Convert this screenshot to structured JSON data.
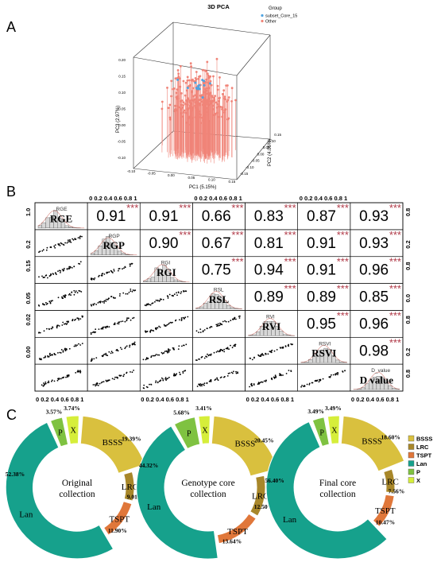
{
  "panel_labels": {
    "a": "A",
    "b": "B",
    "c": "C"
  },
  "colors": {
    "BSSS": "#d9c03e",
    "LRC": "#a8872a",
    "TSPT": "#e0773a",
    "Lan": "#16a18c",
    "P": "#7fc241",
    "X": "#d6ee3a",
    "subset": "#4fa3e0",
    "other": "#f08478",
    "stars": "#b03a48"
  },
  "chart_data": [
    {
      "type": "scatter",
      "subtype": "3d",
      "title": "3D PCA",
      "xlabel": "PC1 (5.15%)",
      "ylabel": "PC2 (4.06%)",
      "zlabel": "PC3 (2.97%)",
      "xlim": [
        -0.1,
        0.15
      ],
      "ylim": [
        -0.15,
        0.15
      ],
      "zlim": [
        -0.1,
        0.2
      ],
      "x_ticks": [
        "-0.10",
        "-0.05",
        "0.00",
        "0.05",
        "0.10",
        "0.15"
      ],
      "y_ticks": [
        "-0.15",
        "-0.10",
        "-0.05",
        "0.00",
        "0.05",
        "0.10",
        "0.15"
      ],
      "z_ticks": [
        "-0.10",
        "-0.05",
        "0.00",
        "0.05",
        "0.10",
        "0.15",
        "0.20"
      ],
      "legend_title": "Group",
      "legend_position": "top-right",
      "series": [
        {
          "name": "subset_Core_15"
        },
        {
          "name": "Other"
        }
      ]
    },
    {
      "type": "scatter",
      "subtype": "correlation-matrix",
      "variables": [
        "RGE",
        "RGP",
        "RGI",
        "RSL",
        "RVI",
        "RSVI",
        "D_value"
      ],
      "labels_bold": [
        "RGE",
        "RGP",
        "RGI",
        "RSL",
        "RVI",
        "RSVI",
        "D value"
      ],
      "correlations": [
        {
          "row": 0,
          "col": 1,
          "r": "0.91",
          "sig": "***"
        },
        {
          "row": 0,
          "col": 2,
          "r": "0.91",
          "sig": "***"
        },
        {
          "row": 0,
          "col": 3,
          "r": "0.66",
          "sig": "***"
        },
        {
          "row": 0,
          "col": 4,
          "r": "0.83",
          "sig": "***"
        },
        {
          "row": 0,
          "col": 5,
          "r": "0.87",
          "sig": "***"
        },
        {
          "row": 0,
          "col": 6,
          "r": "0.93",
          "sig": "***"
        },
        {
          "row": 1,
          "col": 2,
          "r": "0.90",
          "sig": "***"
        },
        {
          "row": 1,
          "col": 3,
          "r": "0.67",
          "sig": "***"
        },
        {
          "row": 1,
          "col": 4,
          "r": "0.81",
          "sig": "***"
        },
        {
          "row": 1,
          "col": 5,
          "r": "0.91",
          "sig": "***"
        },
        {
          "row": 1,
          "col": 6,
          "r": "0.93",
          "sig": "***"
        },
        {
          "row": 2,
          "col": 3,
          "r": "0.75",
          "sig": "***"
        },
        {
          "row": 2,
          "col": 4,
          "r": "0.94",
          "sig": "***"
        },
        {
          "row": 2,
          "col": 5,
          "r": "0.91",
          "sig": "***"
        },
        {
          "row": 2,
          "col": 6,
          "r": "0.96",
          "sig": "***"
        },
        {
          "row": 3,
          "col": 4,
          "r": "0.89",
          "sig": "***"
        },
        {
          "row": 3,
          "col": 5,
          "r": "0.89",
          "sig": "***"
        },
        {
          "row": 3,
          "col": 6,
          "r": "0.85",
          "sig": "***"
        },
        {
          "row": 4,
          "col": 5,
          "r": "0.95",
          "sig": "***"
        },
        {
          "row": 4,
          "col": 6,
          "r": "0.96",
          "sig": "***"
        },
        {
          "row": 5,
          "col": 6,
          "r": "0.98",
          "sig": "***"
        }
      ],
      "top_axis_ticks": "0 0.2 0.4 0.6 0.8 1",
      "bottom_axis_ticks": "0 0.2 0.4 0.6 0.8 1",
      "left_axis_ticks": [
        {
          "row": 0,
          "labels": [
            "1.0",
            "0.2"
          ]
        },
        {
          "row": 2,
          "labels": [
            "0.15",
            "0.05"
          ]
        },
        {
          "row": 4,
          "labels": [
            "0.02",
            "0.00"
          ]
        }
      ],
      "right_axis_ticks": [
        {
          "row": 0,
          "labels": [
            "0.8",
            "0.2"
          ]
        },
        {
          "row": 2,
          "labels": [
            "0.8",
            "0.0"
          ]
        },
        {
          "row": 4,
          "labels": [
            "0.8",
            "0.2"
          ]
        },
        {
          "row": 6,
          "labels": [
            "0.8"
          ]
        }
      ]
    },
    {
      "type": "pie",
      "subtype": "donut",
      "center_label": [
        "Original",
        "collection"
      ],
      "categories": [
        "BSSS",
        "LRC",
        "TSPT",
        "Lan",
        "P",
        "X"
      ],
      "values": [
        19.39,
        9.01,
        11.9,
        52.38,
        3.57,
        3.74
      ],
      "value_labels": [
        "19.39%",
        "9.01%",
        "11.90%",
        "52.38%",
        "3.57%",
        "3.74%"
      ]
    },
    {
      "type": "pie",
      "subtype": "donut",
      "center_label": [
        "Genotype core",
        "collection"
      ],
      "categories": [
        "BSSS",
        "LRC",
        "TSPT",
        "Lan",
        "P",
        "X"
      ],
      "values": [
        20.45,
        12.5,
        13.64,
        44.32,
        5.68,
        3.41
      ],
      "value_labels": [
        "20.45%",
        "12.50%",
        "13.64%",
        "44.32%",
        "5.68%",
        "3.41%"
      ]
    },
    {
      "type": "pie",
      "subtype": "donut",
      "center_label": [
        "Final core",
        "collection"
      ],
      "categories": [
        "BSSS",
        "LRC",
        "TSPT",
        "Lan",
        "P",
        "X"
      ],
      "values": [
        18.6,
        7.56,
        10.47,
        56.4,
        3.49,
        3.49
      ],
      "value_labels": [
        "18.60%",
        "7.56%",
        "10.47%",
        "56.40%",
        "3.49%",
        "3.49%"
      ]
    }
  ],
  "donut_legend": [
    "BSSS",
    "LRC",
    "TSPT",
    "Lan",
    "P",
    "X"
  ]
}
